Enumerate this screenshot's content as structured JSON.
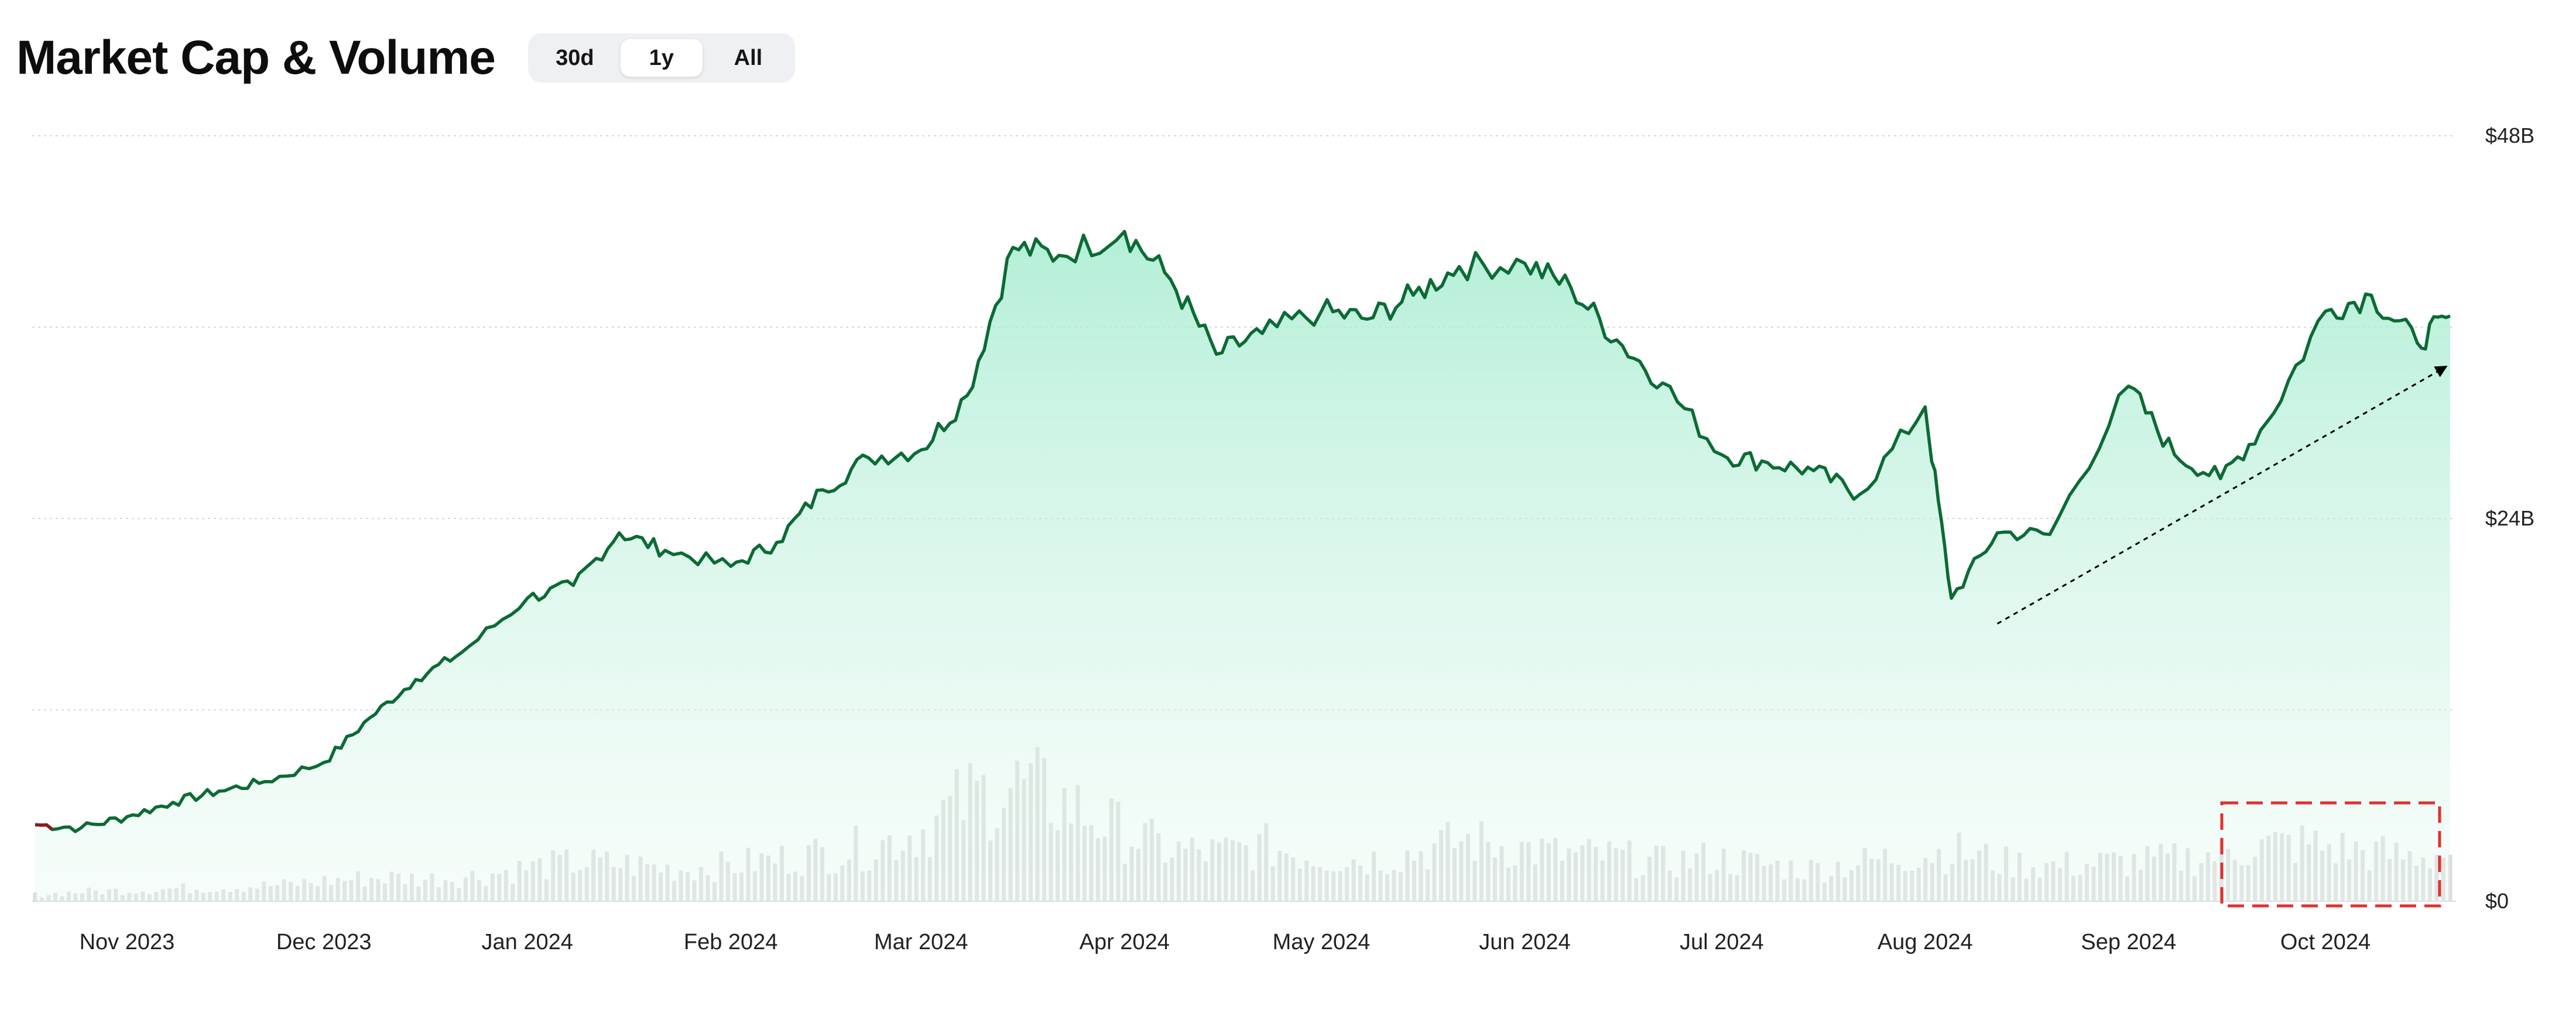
{
  "header": {
    "title": "Market Cap & Volume",
    "ranges": [
      "30d",
      "1y",
      "All"
    ],
    "active_range": "1y"
  },
  "colors": {
    "line": "#0b6b34",
    "line_start": "#8b1a1a",
    "area_top": "#a6ecd0",
    "volume": "#dcdcdc",
    "grid": "#d9d9d9",
    "highlight_box": "#e03131",
    "trend_arrow": "#000000"
  },
  "chart_data": {
    "type": "line",
    "title": "Market Cap & Volume",
    "x_tick_labels": [
      "Nov 2023",
      "Dec 2023",
      "Jan 2024",
      "Feb 2024",
      "Mar 2024",
      "Apr 2024",
      "May 2024",
      "Jun 2024",
      "Jul 2024",
      "Aug 2024",
      "Sep 2024",
      "Oct 2024"
    ],
    "y_tick_labels": [
      "$48B",
      "$24B",
      "$0"
    ],
    "ylim": [
      0,
      48
    ],
    "y_unit": "$B",
    "grid": true,
    "series": [
      {
        "kind": "area-line",
        "note_units": "market cap in $B, approx. semi-monthly samples",
        "x": [
          "2023-10-18",
          "2023-10-25",
          "2023-11-01",
          "2023-11-08",
          "2023-11-15",
          "2023-11-22",
          "2023-12-01",
          "2023-12-08",
          "2023-12-15",
          "2023-12-22",
          "2024-01-01",
          "2024-01-08",
          "2024-01-15",
          "2024-01-22",
          "2024-02-01",
          "2024-02-08",
          "2024-02-15",
          "2024-02-22",
          "2024-03-01",
          "2024-03-08",
          "2024-03-15",
          "2024-03-22",
          "2024-04-01",
          "2024-04-08",
          "2024-04-15",
          "2024-04-22",
          "2024-05-01",
          "2024-05-08",
          "2024-05-15",
          "2024-05-22",
          "2024-06-01",
          "2024-06-08",
          "2024-06-15",
          "2024-06-22",
          "2024-07-01",
          "2024-07-08",
          "2024-07-15",
          "2024-07-22",
          "2024-08-01",
          "2024-08-05",
          "2024-08-12",
          "2024-08-20",
          "2024-09-01",
          "2024-09-08",
          "2024-09-15",
          "2024-09-22",
          "2024-10-01",
          "2024-10-08",
          "2024-10-15",
          "2024-10-20"
        ],
        "values": [
          4.8,
          4.6,
          5.3,
          6.2,
          6.9,
          7.5,
          8.7,
          11.5,
          13.9,
          15.6,
          19.0,
          19.8,
          23.1,
          22.0,
          21.0,
          22.5,
          25.8,
          27.8,
          28.3,
          31.7,
          41.0,
          40.5,
          42.0,
          39.0,
          34.3,
          35.6,
          37.0,
          36.5,
          38.0,
          39.8,
          40.0,
          38.5,
          35.2,
          32.5,
          28.0,
          27.5,
          27.0,
          25.5,
          31.0,
          19.0,
          23.1,
          23.0,
          32.3,
          28.0,
          26.5,
          30.0,
          37.0,
          38.0,
          35.0,
          36.7
        ]
      },
      {
        "kind": "volume-bars",
        "name": "Volume",
        "note_units": "relative volume, $B scale",
        "values": [
          0.4,
          0.6,
          0.7,
          0.8,
          0.9,
          1.0,
          1.3,
          1.5,
          1.4,
          1.6,
          2.1,
          2.4,
          2.3,
          2.0,
          2.2,
          2.6,
          3.0,
          3.4,
          4.5,
          6.5,
          7.2,
          6.0,
          4.4,
          3.2,
          3.0,
          3.4,
          2.8,
          2.6,
          3.0,
          3.8,
          3.4,
          2.9,
          2.8,
          2.4,
          2.7,
          2.3,
          2.0,
          2.4,
          2.9,
          3.1,
          2.4,
          2.2,
          2.4,
          2.5,
          2.8,
          3.4,
          3.6,
          3.2,
          2.8,
          3.0
        ]
      }
    ],
    "annotations": [
      "dashed trend arrow from Aug 2024 low toward Oct 2024",
      "red dashed highlight box over Oct 2024 volume"
    ]
  }
}
